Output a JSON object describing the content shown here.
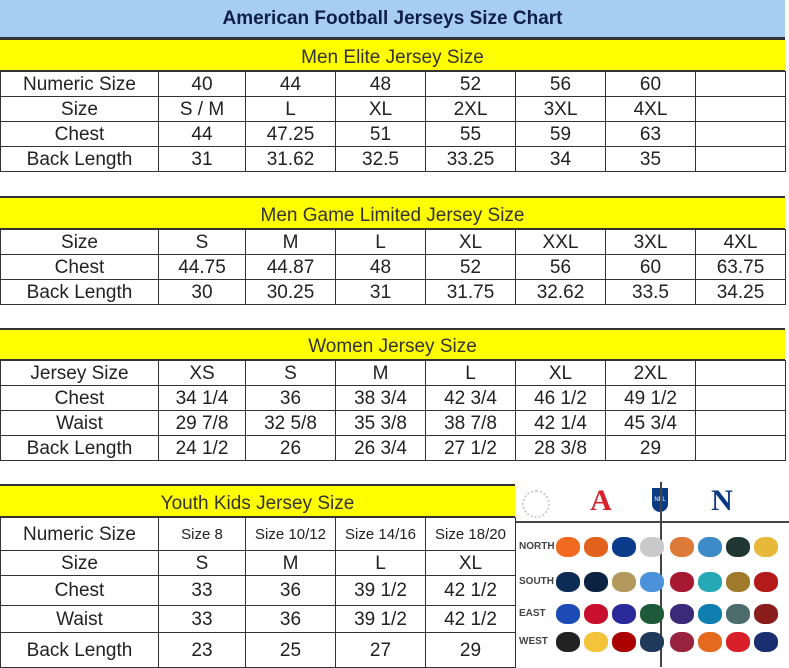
{
  "title": "American Football Jerseys Size Chart",
  "colors": {
    "title_bg": "#a8cdf3",
    "band_bg": "#ffff00",
    "title_text": "#0f1f45"
  },
  "sections": [
    {
      "heading": "Men Elite Jersey Size",
      "rows": [
        [
          "Numeric Size",
          "40",
          "44",
          "48",
          "52",
          "56",
          "60",
          ""
        ],
        [
          "Size",
          "S / M",
          "L",
          "XL",
          "2XL",
          "3XL",
          "4XL",
          ""
        ],
        [
          "Chest",
          "44",
          "47.25",
          "51",
          "55",
          "59",
          "63",
          ""
        ],
        [
          "Back Length",
          "31",
          "31.62",
          "32.5",
          "33.25",
          "34",
          "35",
          ""
        ]
      ]
    },
    {
      "heading": "Men Game Limited Jersey Size",
      "rows": [
        [
          "Size",
          "S",
          "M",
          "L",
          "XL",
          "XXL",
          "3XL",
          "4XL"
        ],
        [
          "Chest",
          "44.75",
          "44.87",
          "48",
          "52",
          "56",
          "60",
          "63.75"
        ],
        [
          "Back Length",
          "30",
          "30.25",
          "31",
          "31.75",
          "32.62",
          "33.5",
          "34.25"
        ]
      ]
    },
    {
      "heading": "Women Jersey Size",
      "rows": [
        [
          "Jersey Size",
          "XS",
          "S",
          "M",
          "L",
          "XL",
          "2XL",
          ""
        ],
        [
          "Chest",
          "34 1/4",
          "36",
          "38 3/4",
          "42 3/4",
          "46 1/2",
          "49 1/2",
          ""
        ],
        [
          "Waist",
          "29 7/8",
          "32 5/8",
          "35 3/8",
          "38 7/8",
          "42 1/4",
          "45 3/4",
          ""
        ],
        [
          "Back Length",
          "24 1/2",
          "26",
          "26 3/4",
          "27 1/2",
          "28 3/8",
          "29",
          ""
        ]
      ]
    },
    {
      "heading": "Youth Kids Jersey Size",
      "rows": [
        [
          "Numeric Size",
          "Size 8",
          "Size 10/12",
          "Size 14/16",
          "Size 18/20"
        ],
        [
          "Size",
          "S",
          "M",
          "L",
          "XL"
        ],
        [
          "Chest",
          "33",
          "36",
          "39 1/2",
          "42 1/2"
        ],
        [
          "Waist",
          "33",
          "36",
          "39 1/2",
          "42 1/2"
        ],
        [
          "Back Length",
          "23",
          "25",
          "27",
          "29"
        ]
      ]
    }
  ],
  "league": {
    "afc_mark": "A",
    "nfc_mark": "N",
    "nfl_shield": "NFL",
    "divisions": [
      "NORTH",
      "SOUTH",
      "EAST",
      "WEST"
    ],
    "afc_logos": [
      [
        {
          "icon": "bengals-logo-icon",
          "color": "#f26a21"
        },
        {
          "icon": "browns-logo-icon",
          "color": "#e2621d"
        },
        {
          "icon": "colts-logo-icon",
          "color": "#0b3c8c"
        },
        {
          "icon": "steelers-logo-icon",
          "color": "#c9c9c9"
        }
      ],
      [
        {
          "icon": "cowboys-logo-icon",
          "color": "#0c2c56"
        },
        {
          "icon": "texans-logo-icon",
          "color": "#0b2240"
        },
        {
          "icon": "saints-logo-icon",
          "color": "#b3995d"
        },
        {
          "icon": "titans-logo-icon",
          "color": "#4b92db"
        }
      ],
      [
        {
          "icon": "bills-logo-icon",
          "color": "#1c4bb8"
        },
        {
          "icon": "patriots-logo-icon",
          "color": "#c8102e"
        },
        {
          "icon": "giants-logo-icon",
          "color": "#2a2a9a"
        },
        {
          "icon": "jets-logo-icon",
          "color": "#1e5a3a"
        }
      ],
      [
        {
          "icon": "raiders-logo-icon",
          "color": "#222222"
        },
        {
          "icon": "chargers-logo-icon",
          "color": "#f3c33a"
        },
        {
          "icon": "49ers-logo-icon",
          "color": "#aa0000"
        },
        {
          "icon": "seahawks-logo-icon",
          "color": "#203a5c"
        }
      ]
    ],
    "nfc_logos": [
      [
        {
          "icon": "bears-logo-icon",
          "color": "#dd7a3a"
        },
        {
          "icon": "lions-logo-icon",
          "color": "#3d8bc7"
        },
        {
          "icon": "packers-logo-icon",
          "color": "#203731"
        },
        {
          "icon": "vikings-logo-icon",
          "color": "#e8b83a"
        }
      ],
      [
        {
          "icon": "falcons-logo-icon",
          "color": "#a71930"
        },
        {
          "icon": "dolphins-logo-icon",
          "color": "#26a8b5"
        },
        {
          "icon": "jaguars-logo-icon",
          "color": "#9f7a2a"
        },
        {
          "icon": "buccaneers-logo-icon",
          "color": "#b31b1b"
        }
      ],
      [
        {
          "icon": "ravens-logo-icon",
          "color": "#3b2a7a"
        },
        {
          "icon": "panthers-logo-icon",
          "color": "#0e7fb0"
        },
        {
          "icon": "eagles-logo-icon",
          "color": "#4c6b6b"
        },
        {
          "icon": "redskins-logo-icon",
          "color": "#8a1c1c"
        }
      ],
      [
        {
          "icon": "cardinals-logo-icon",
          "color": "#97233f"
        },
        {
          "icon": "broncos-logo-icon",
          "color": "#e36a1f"
        },
        {
          "icon": "chiefs-logo-icon",
          "color": "#d81f2a"
        },
        {
          "icon": "rams-logo-icon",
          "color": "#1a2f70"
        }
      ]
    ]
  }
}
